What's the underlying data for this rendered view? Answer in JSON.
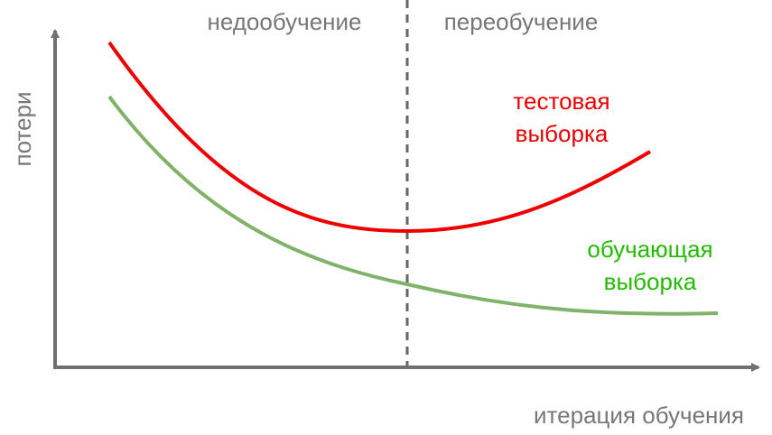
{
  "regions": {
    "left": "недообучение",
    "right": "переобучение"
  },
  "curves": {
    "test": [
      "тестовая",
      "выборка"
    ],
    "train": [
      "обучающая",
      "выборка"
    ]
  },
  "axes": {
    "y": "потери",
    "x": "итерация обучения"
  }
}
